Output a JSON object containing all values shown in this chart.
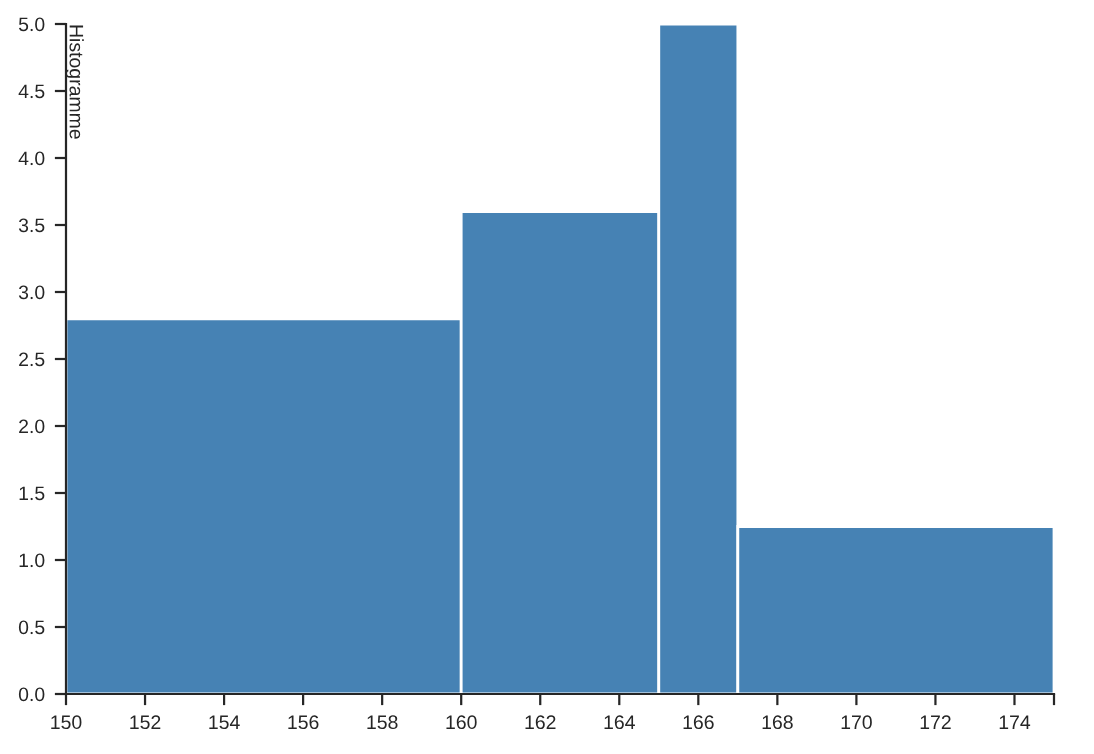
{
  "chart_data": {
    "type": "histogram",
    "ylabel": "Histogramme",
    "bins": [
      150,
      160,
      165,
      167,
      175
    ],
    "values": [
      2.8,
      3.6,
      5.0,
      1.25
    ],
    "color": "#4682b4",
    "xlim": [
      150,
      175
    ],
    "xticks": [
      150,
      152,
      154,
      156,
      158,
      160,
      162,
      164,
      166,
      168,
      170,
      172,
      174,
      {
        "value": 175,
        "label": null
      }
    ],
    "ylim": [
      0,
      5
    ],
    "yticks": [
      {
        "value": 0,
        "label": "0.0"
      },
      {
        "value": 0.5,
        "label": "0.5"
      },
      {
        "value": 1,
        "label": "1.0"
      },
      {
        "value": 1.5,
        "label": "1.5"
      },
      {
        "value": 2,
        "label": "2.0"
      },
      {
        "value": 2.5,
        "label": "2.5"
      },
      {
        "value": 3,
        "label": "3.0"
      },
      {
        "value": 3.5,
        "label": "3.5"
      },
      {
        "value": 4,
        "label": "4.0"
      },
      {
        "value": 4.5,
        "label": "4.5"
      },
      {
        "value": 5,
        "label": "5.0"
      }
    ],
    "grid": false,
    "legend": false
  }
}
